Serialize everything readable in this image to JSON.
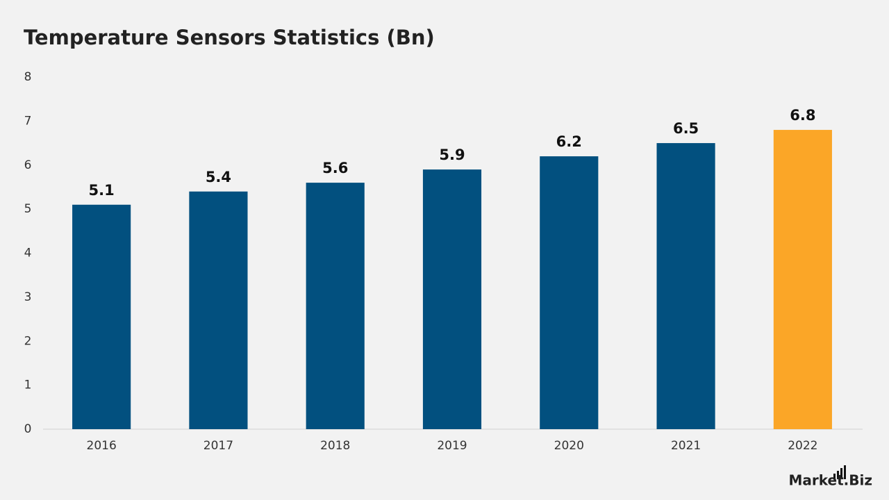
{
  "chart_data": {
    "type": "bar",
    "title": "Temperature Sensors Statistics (Bn)",
    "categories": [
      "2016",
      "2017",
      "2018",
      "2019",
      "2020",
      "2021",
      "2022"
    ],
    "values": [
      5.1,
      5.4,
      5.6,
      5.9,
      6.2,
      6.5,
      6.8
    ],
    "colors": [
      "#02507f",
      "#02507f",
      "#02507f",
      "#02507f",
      "#02507f",
      "#02507f",
      "#fba627"
    ],
    "ylim": [
      0,
      8
    ],
    "yticks": [
      0,
      1,
      2,
      3,
      4,
      5,
      6,
      7,
      8
    ],
    "grid": false
  },
  "logo": "Market.Biz"
}
